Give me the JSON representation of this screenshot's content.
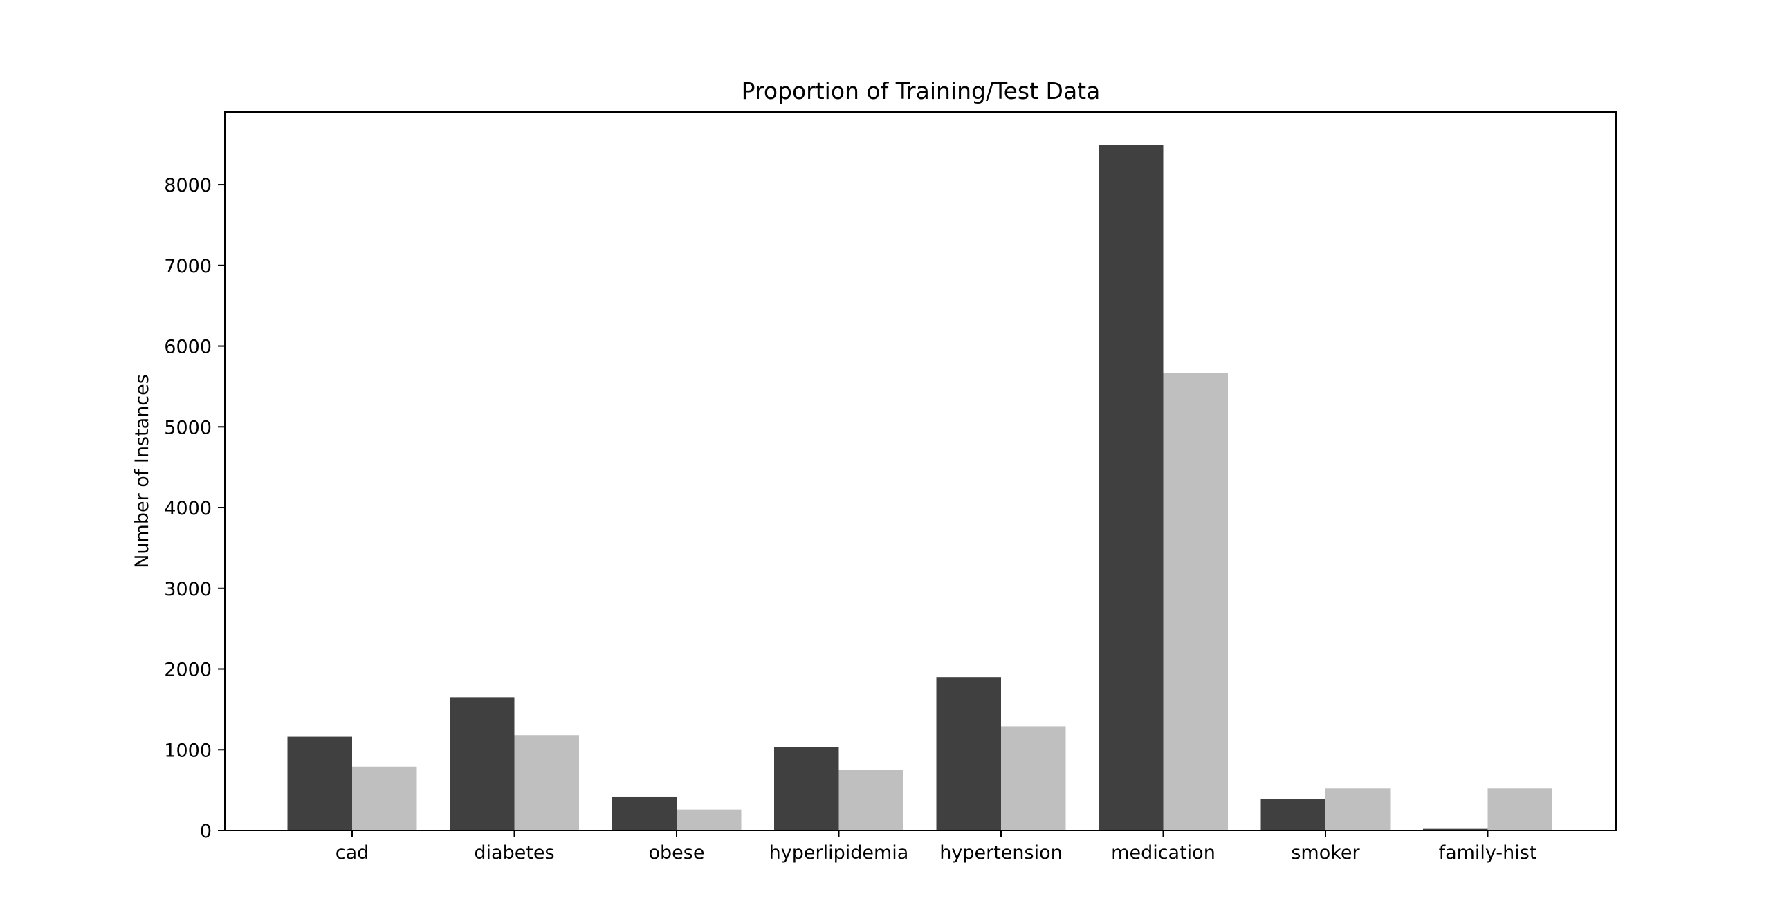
{
  "chart_data": {
    "type": "bar",
    "title": "Proportion of Training/Test Data",
    "xlabel": "",
    "ylabel": "Number of Instances",
    "categories": [
      "cad",
      "diabetes",
      "obese",
      "hyperlipidemia",
      "hypertension",
      "medication",
      "smoker",
      "family-hist"
    ],
    "series": [
      {
        "values": [
          1160,
          1650,
          420,
          1030,
          1900,
          8490,
          390,
          20
        ],
        "color": "#404040"
      },
      {
        "values": [
          790,
          1180,
          260,
          750,
          1290,
          5670,
          520,
          520
        ],
        "color": "#bfbfbf"
      }
    ],
    "ylim": [
      0,
      8900
    ],
    "yticks": [
      0,
      1000,
      2000,
      3000,
      4000,
      5000,
      6000,
      7000,
      8000
    ],
    "ytick_labels": [
      "0",
      "1000",
      "2000",
      "3000",
      "4000",
      "5000",
      "6000",
      "7000",
      "8000"
    ],
    "grid": false,
    "legend": "none"
  }
}
